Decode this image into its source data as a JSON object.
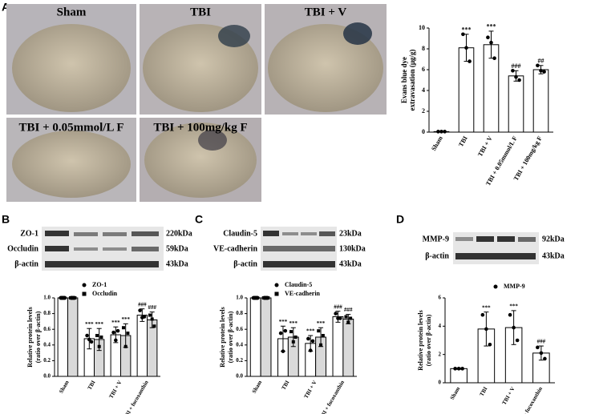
{
  "panels": {
    "letters": [
      "A",
      "B",
      "C",
      "D"
    ]
  },
  "images": {
    "labels": [
      "Sham",
      "TBI",
      "TBI + V",
      "TBI + 0.05mmol/L F",
      "TBI + 100mg/kg F"
    ]
  },
  "blots": {
    "B": {
      "left": [
        "ZO-1",
        "Occludin",
        "β-actin"
      ],
      "right": [
        "220kDa",
        "59kDa",
        "43kDa"
      ]
    },
    "C": {
      "left": [
        "Claudin-5",
        "VE-cadherin",
        "β-actin"
      ],
      "right": [
        "23kDa",
        "130kDa",
        "43kDa"
      ]
    },
    "D": {
      "left": [
        "MMP-9",
        "β-actin"
      ],
      "right": [
        "92kDa",
        "43kDa"
      ]
    }
  },
  "chart_data": [
    {
      "type": "bar",
      "ylabel": [
        "Evans blue dye",
        "extravasation (μg/g)"
      ],
      "categories": [
        "Sham",
        "TBI",
        "TBI + V",
        "TBI + 0.05mmol/L F",
        "TBI + 100mg/kg F"
      ],
      "values": [
        0.05,
        8.1,
        8.4,
        5.4,
        6.0
      ],
      "errors": [
        0.05,
        1.3,
        1.3,
        0.5,
        0.4
      ],
      "points": [
        [
          0.05,
          0.05,
          0.05
        ],
        [
          9.4,
          8.1,
          6.8
        ],
        [
          9.1,
          8.6,
          7.1
        ],
        [
          5.9,
          5.3,
          5.0
        ],
        [
          6.4,
          5.9,
          5.8
        ]
      ],
      "annotations": [
        null,
        "***",
        "***",
        "###",
        "##"
      ],
      "color": "#ffffff",
      "ylim": [
        0,
        10
      ],
      "yticks": [
        0,
        2,
        4,
        6,
        8,
        10
      ]
    },
    {
      "type": "bar",
      "ylabel": [
        "Relative protein levels",
        "(ratio over β-actin)"
      ],
      "categories": [
        "Sham",
        "TBI",
        "TBI + V",
        "TBI + fucoxanthin"
      ],
      "series": [
        {
          "name": "ZO-1",
          "color": "#ffffff",
          "marker": "circle",
          "values": [
            1.0,
            0.48,
            0.53,
            0.78
          ],
          "errors": [
            0.02,
            0.13,
            0.1,
            0.08
          ],
          "points": [
            [
              1,
              1,
              1
            ],
            [
              0.52,
              0.47,
              0.44
            ],
            [
              0.56,
              0.46,
              0.58
            ],
            [
              0.84,
              0.75,
              0.76
            ]
          ],
          "annotations": [
            null,
            "***",
            "***",
            "###"
          ]
        },
        {
          "name": "Occludin",
          "color": "#d9d9d9",
          "marker": "square",
          "values": [
            1.0,
            0.47,
            0.52,
            0.72
          ],
          "errors": [
            0.02,
            0.14,
            0.15,
            0.1
          ],
          "points": [
            [
              1,
              1,
              1
            ],
            [
              0.52,
              0.38,
              0.5
            ],
            [
              0.62,
              0.38,
              0.55
            ],
            [
              0.78,
              0.73,
              0.64
            ]
          ],
          "annotations": [
            null,
            "***",
            "***",
            "###"
          ]
        }
      ],
      "ylim": [
        0,
        1
      ],
      "yticks": [
        {
          "value": 0,
          "label": "0.0"
        },
        0.2,
        0.4,
        0.6,
        0.8,
        {
          "value": 1,
          "label": "1.0"
        }
      ],
      "legend": "top"
    },
    {
      "type": "bar",
      "ylabel": [
        "Relative protein levels",
        "(ratio over β-actin)"
      ],
      "categories": [
        "Sham",
        "TBI",
        "TBI + V",
        "TBI + fucoxanthin"
      ],
      "series": [
        {
          "name": "Claudin-5",
          "color": "#ffffff",
          "marker": "circle",
          "values": [
            1.0,
            0.48,
            0.42,
            0.76
          ],
          "errors": [
            0.02,
            0.16,
            0.1,
            0.07
          ],
          "points": [
            [
              1,
              1,
              1
            ],
            [
              0.55,
              0.32,
              0.58
            ],
            [
              0.48,
              0.33,
              0.45
            ],
            [
              0.8,
              0.74,
              0.74
            ]
          ],
          "annotations": [
            null,
            "***",
            "***",
            "###"
          ]
        },
        {
          "name": "VE-cadherin",
          "color": "#d9d9d9",
          "marker": "square",
          "values": [
            1.0,
            0.5,
            0.5,
            0.73
          ],
          "errors": [
            0.02,
            0.12,
            0.12,
            0.06
          ],
          "points": [
            [
              1,
              1,
              1
            ],
            [
              0.57,
              0.44,
              0.5
            ],
            [
              0.58,
              0.4,
              0.52
            ],
            [
              0.76,
              0.69,
              0.74
            ]
          ],
          "annotations": [
            null,
            "***",
            "***",
            "###"
          ]
        }
      ],
      "ylim": [
        0,
        1
      ],
      "yticks": [
        {
          "value": 0,
          "label": "0.0"
        },
        0.2,
        0.4,
        0.6,
        0.8,
        {
          "value": 1,
          "label": "1.0"
        }
      ],
      "legend": "top"
    },
    {
      "type": "bar",
      "ylabel": [
        "Relative protein levels",
        "(ratio over β-actin)"
      ],
      "categories": [
        "Sham",
        "TBI",
        "TBI + V",
        "TBI + fucoxanthin"
      ],
      "series": [
        {
          "name": "MMP-9",
          "color": "#ffffff",
          "marker": "circle",
          "values": [
            1.0,
            3.8,
            3.9,
            2.1
          ],
          "errors": [
            0.05,
            1.2,
            1.2,
            0.5
          ],
          "points": [
            [
              1,
              1,
              1
            ],
            [
              4.8,
              3.8,
              2.7
            ],
            [
              4.8,
              3.9,
              3.0
            ],
            [
              2.5,
              2.1,
              1.7
            ]
          ],
          "annotations": [
            null,
            "***",
            "***",
            "###"
          ]
        }
      ],
      "ylim": [
        0,
        6
      ],
      "yticks": [
        0,
        2,
        4,
        6
      ],
      "legend": "top"
    }
  ]
}
